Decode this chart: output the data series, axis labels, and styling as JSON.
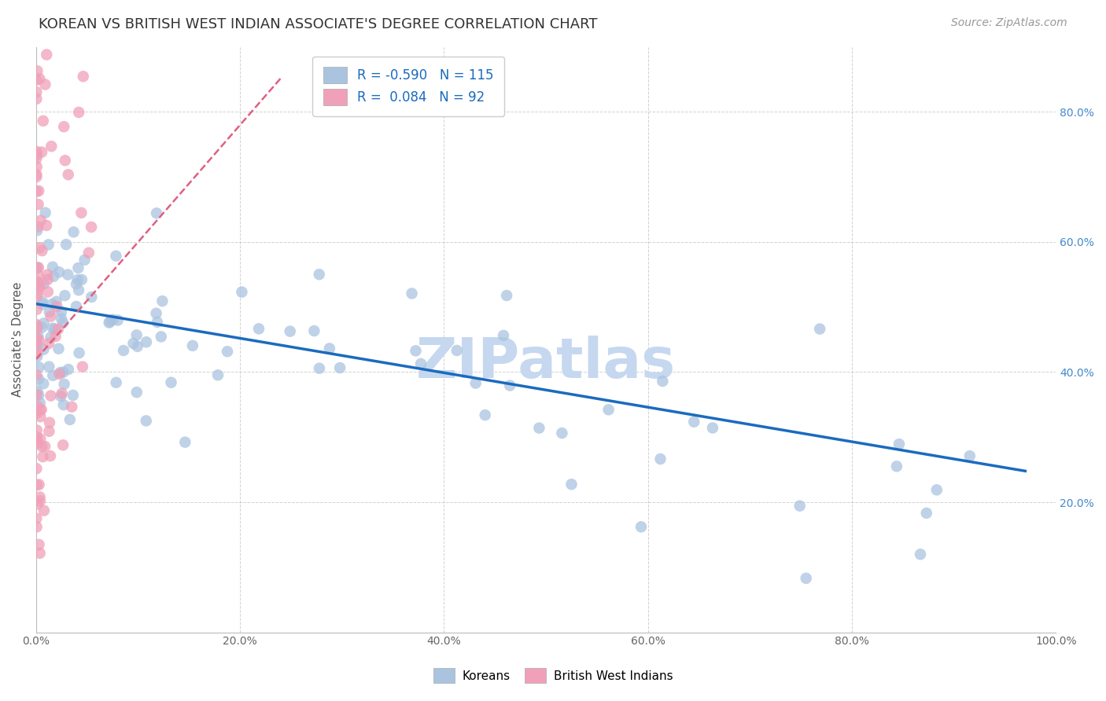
{
  "title": "KOREAN VS BRITISH WEST INDIAN ASSOCIATE'S DEGREE CORRELATION CHART",
  "source": "Source: ZipAtlas.com",
  "ylabel": "Associate's Degree",
  "watermark": "ZIPatlas",
  "korean_R": -0.59,
  "korean_N": 115,
  "bwi_R": 0.084,
  "bwi_N": 92,
  "xlim": [
    0.0,
    1.0
  ],
  "ylim": [
    0.0,
    0.9
  ],
  "xtick_positions": [
    0.0,
    0.2,
    0.4,
    0.6,
    0.8,
    1.0
  ],
  "ytick_positions": [
    0.2,
    0.4,
    0.6,
    0.8
  ],
  "ytick_labels_right": [
    "20.0%",
    "40.0%",
    "60.0%",
    "80.0%"
  ],
  "xtick_labels": [
    "0.0%",
    "20.0%",
    "40.0%",
    "60.0%",
    "80.0%",
    "100.0%"
  ],
  "korean_color": "#aac4e0",
  "bwi_color": "#f0a0b8",
  "korean_line_color": "#1a6bbf",
  "bwi_line_color": "#e06080",
  "background_color": "#ffffff",
  "grid_color": "#cccccc",
  "title_fontsize": 13,
  "source_fontsize": 10,
  "legend_fontsize": 12,
  "axis_label_fontsize": 11,
  "watermark_color": "#c5d8ef",
  "watermark_fontsize": 52,
  "legend_text_color": "#1a6bbf"
}
